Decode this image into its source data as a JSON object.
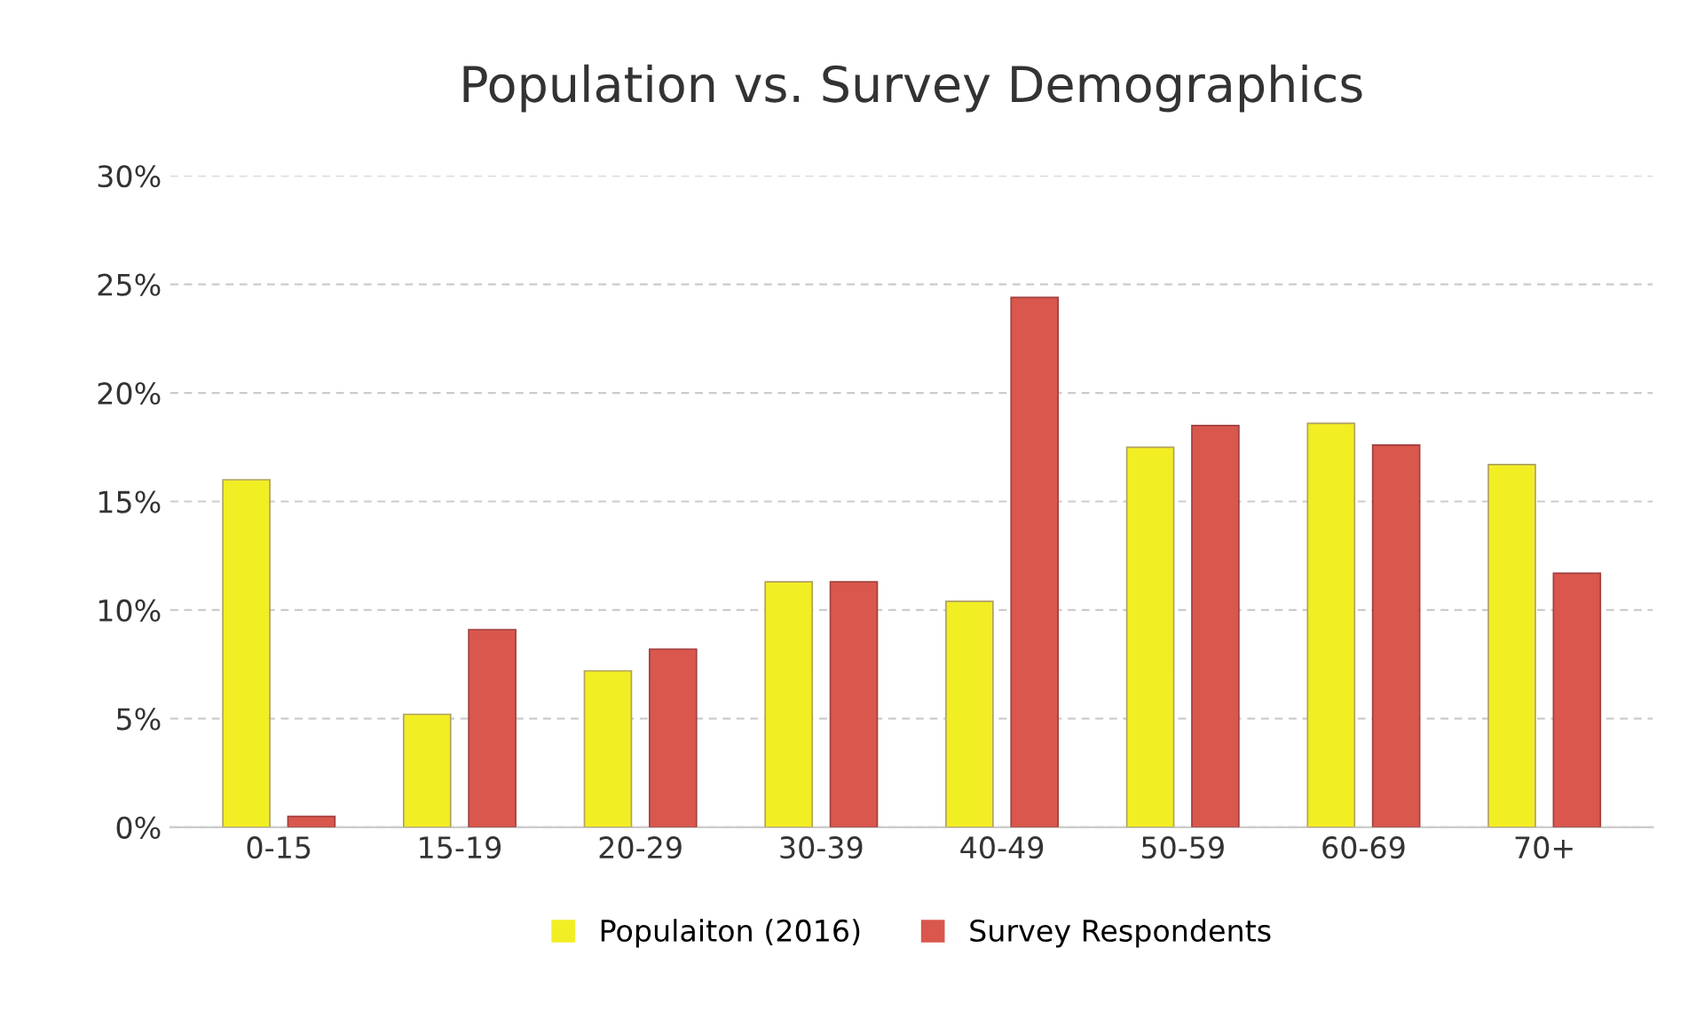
{
  "chart_data": {
    "type": "bar",
    "title": "Population vs. Survey Demographics",
    "categories": [
      "0-15",
      "15-19",
      "20-29",
      "30-39",
      "40-49",
      "50-59",
      "60-69",
      "70+"
    ],
    "series": [
      {
        "name": "Populaiton (2016)",
        "color": "#f2ee24",
        "values": [
          16.0,
          5.2,
          7.2,
          11.3,
          10.4,
          17.5,
          18.6,
          16.7
        ]
      },
      {
        "name": "Survey Respondents",
        "color": "#d9574c",
        "values": [
          0.5,
          9.1,
          8.2,
          11.3,
          24.4,
          18.5,
          17.6,
          11.7
        ]
      }
    ],
    "ylim": [
      0,
      30
    ],
    "yticks": [
      {
        "value": 0,
        "label": "0%"
      },
      {
        "value": 5,
        "label": "5%"
      },
      {
        "value": 10,
        "label": "10%"
      },
      {
        "value": 15,
        "label": "15%"
      },
      {
        "value": 20,
        "label": "20%"
      },
      {
        "value": 25,
        "label": "25%"
      },
      {
        "value": 30,
        "label": "30%"
      }
    ],
    "grid": "y",
    "legend": "bottom"
  }
}
